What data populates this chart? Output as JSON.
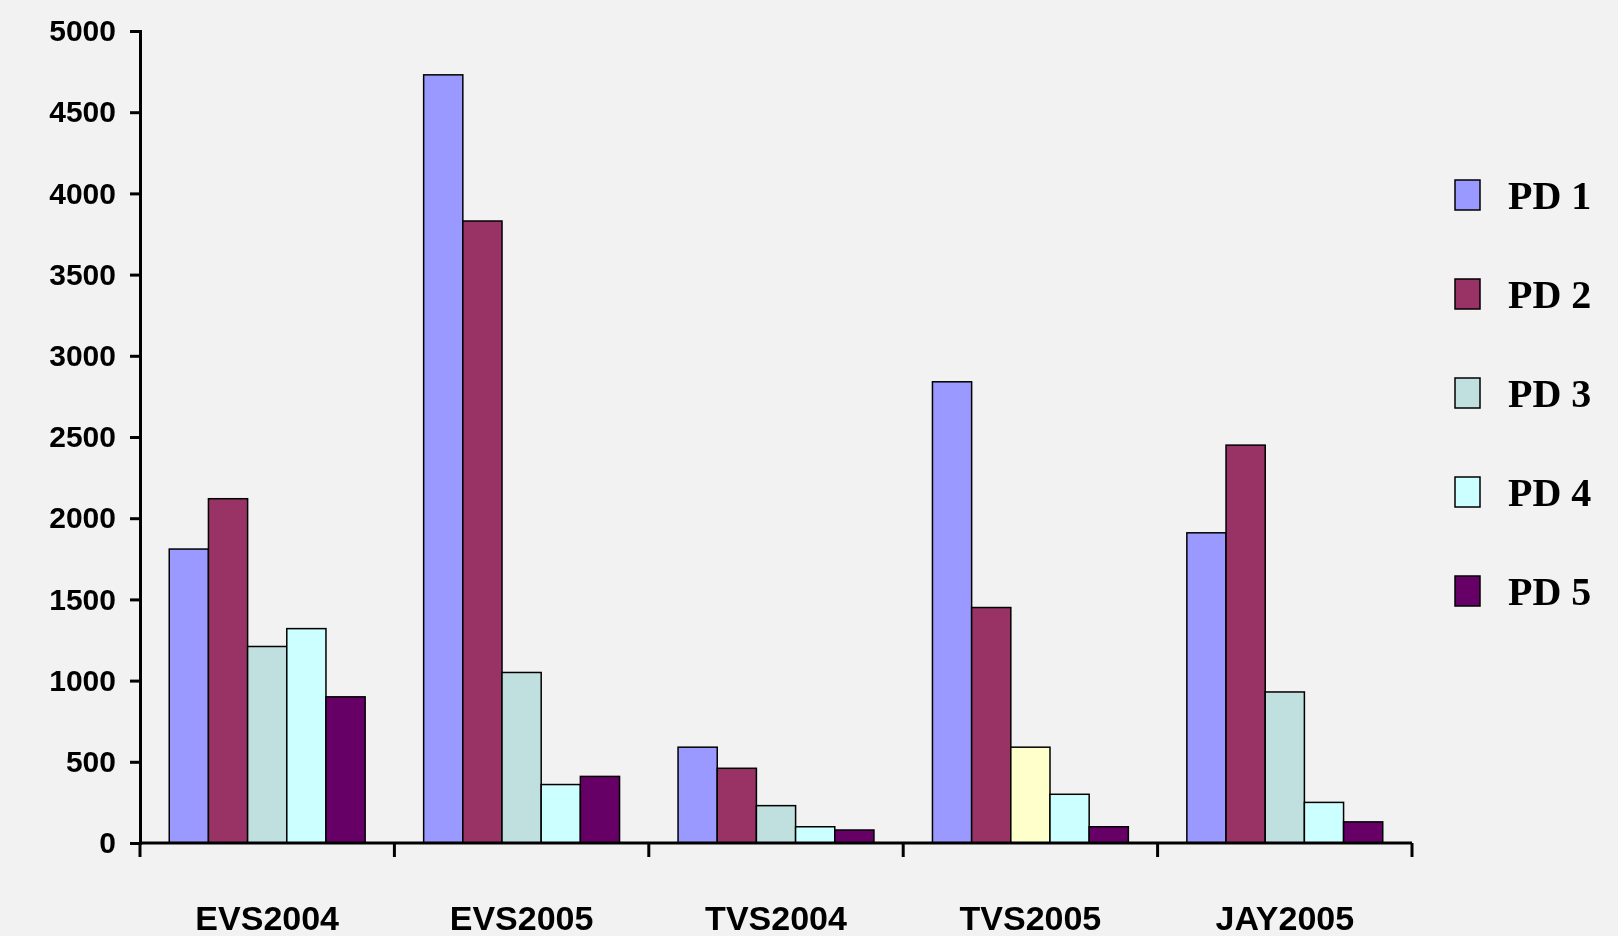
{
  "chart_data": {
    "type": "bar",
    "categories": [
      "EVS2004",
      "EVS2005",
      "TVS2004",
      "TVS2005",
      "JAY2005"
    ],
    "series": [
      {
        "name": "PD 1",
        "color": "#9999ff",
        "values": [
          1810,
          4730,
          590,
          2840,
          1910
        ]
      },
      {
        "name": "PD 2",
        "color": "#993366",
        "values": [
          2120,
          3830,
          460,
          1450,
          2450
        ]
      },
      {
        "name": "PD 3",
        "color": "#c0e0e0",
        "colors": [
          "#c0e0e0",
          "#c0e0e0",
          "#c0e0e0",
          "#ffffcc",
          "#c0e0e0"
        ],
        "values": [
          1210,
          1050,
          230,
          590,
          930
        ]
      },
      {
        "name": "PD 4",
        "color": "#ccffff",
        "values": [
          1320,
          360,
          100,
          300,
          250
        ]
      },
      {
        "name": "PD 5",
        "color": "#660066",
        "values": [
          900,
          410,
          80,
          100,
          130
        ]
      }
    ],
    "ylim": [
      0,
      5000
    ],
    "yticks": [
      0,
      500,
      1000,
      1500,
      2000,
      2500,
      3000,
      3500,
      4000,
      4500,
      5000
    ],
    "grid": false,
    "legend": "right"
  }
}
